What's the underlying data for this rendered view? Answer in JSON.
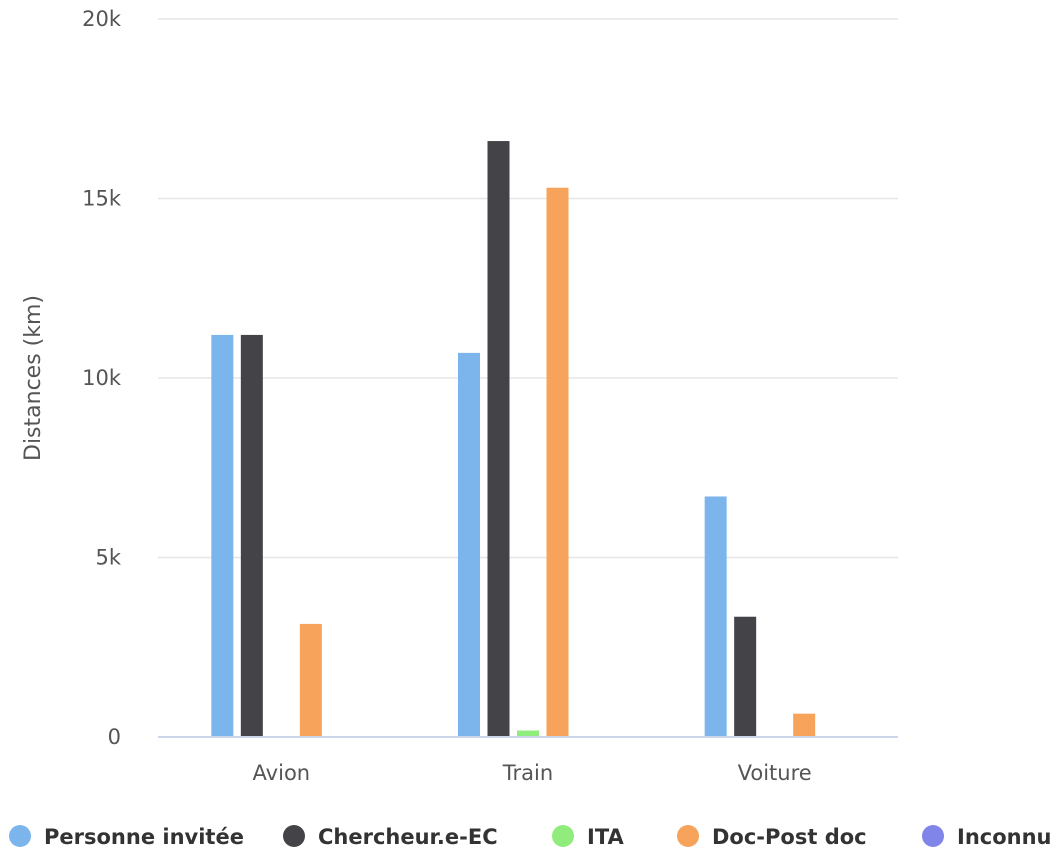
{
  "chart_data": {
    "type": "bar",
    "categories": [
      "Avion",
      "Train",
      "Voiture"
    ],
    "series": [
      {
        "name": "Personne invitée",
        "color": "#7cb5ec",
        "values": [
          11200,
          10700,
          6700
        ]
      },
      {
        "name": "Chercheur.e-EC",
        "color": "#434348",
        "values": [
          11200,
          16600,
          3350
        ]
      },
      {
        "name": "ITA",
        "color": "#90ed7d",
        "values": [
          0,
          180,
          0
        ]
      },
      {
        "name": "Doc-Post doc",
        "color": "#f7a35c",
        "values": [
          3150,
          15300,
          650
        ]
      },
      {
        "name": "Inconnu",
        "color": "#8085e9",
        "values": [
          0,
          0,
          0
        ]
      }
    ],
    "ylabel": "Distances (km)",
    "ylim": [
      0,
      20000
    ],
    "yticks": [
      0,
      5000,
      10000,
      15000,
      20000
    ],
    "ytick_labels": [
      "0",
      "5k",
      "10k",
      "15k",
      "20k"
    ],
    "grid": true,
    "legend_position": "bottom"
  }
}
